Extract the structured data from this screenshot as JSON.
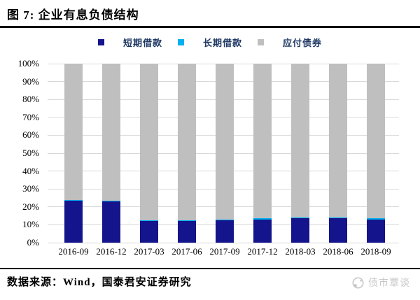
{
  "header": {
    "title": "图 7: 企业有息负债结构"
  },
  "chart_data": {
    "type": "bar",
    "stacked": true,
    "title": "企业有息负债结构",
    "categories": [
      "2016-09",
      "2016-12",
      "2017-03",
      "2017-06",
      "2017-09",
      "2017-12",
      "2018-03",
      "2018-06",
      "2018-09"
    ],
    "series": [
      {
        "name": "短期借款",
        "color": "#14148C",
        "values": [
          23.5,
          23.0,
          12.0,
          12.0,
          12.5,
          13.0,
          13.5,
          13.5,
          13.0
        ]
      },
      {
        "name": "长期借款",
        "color": "#00B0F0",
        "values": [
          0.5,
          0.5,
          0.5,
          0.5,
          0.5,
          0.5,
          0.5,
          0.5,
          0.5
        ]
      },
      {
        "name": "应付债券",
        "color": "#BFBFBF",
        "values": [
          76.0,
          76.5,
          87.5,
          87.5,
          87.0,
          86.5,
          86.0,
          86.0,
          86.5
        ]
      }
    ],
    "xlabel": "",
    "ylabel": "",
    "ylim": [
      0,
      100
    ],
    "ytick_step": 10,
    "ytick_suffix": "%",
    "grid": true,
    "gridline_color": "#D9D9D9",
    "legend_position": "top"
  },
  "source": {
    "text": "数据来源：Wind，国泰君安证券研究"
  },
  "watermark": {
    "text": "债市覃谈",
    "icon": "logo-circle-icon"
  }
}
